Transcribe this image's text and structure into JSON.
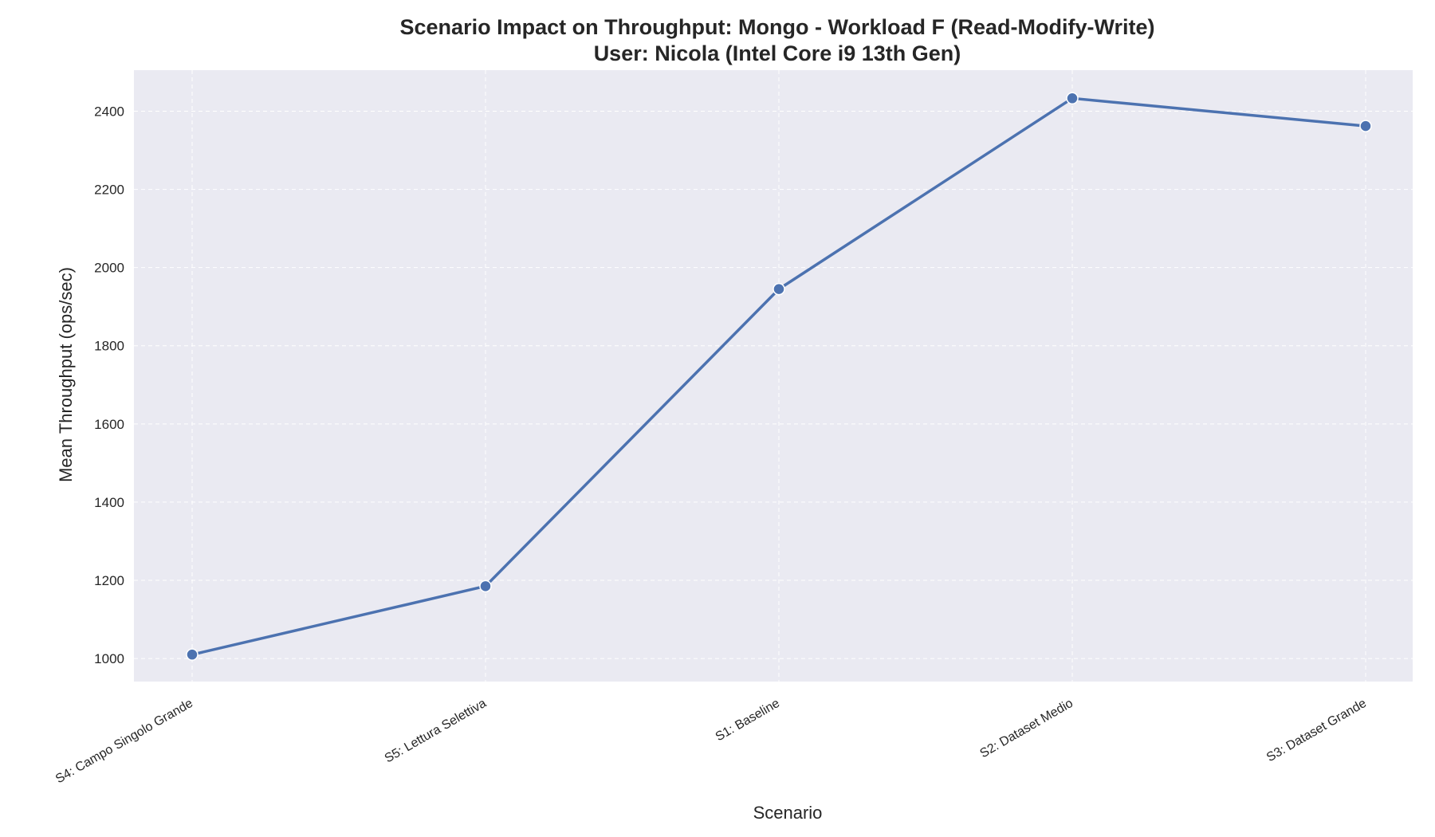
{
  "chart_data": {
    "type": "line",
    "title": "Scenario Impact on Throughput: Mongo - Workload F (Read-Modify-Write)",
    "subtitle": "User: Nicola (Intel Core i9 13th Gen)",
    "xlabel": "Scenario",
    "ylabel": "Mean Throughput (ops/sec)",
    "categories": [
      "S4: Campo Singolo Grande",
      "S5: Lettura Selettiva",
      "S1: Baseline",
      "S2: Dataset Medio",
      "S3: Dataset Grande"
    ],
    "values": [
      1010,
      1185,
      1945,
      2433,
      2362
    ],
    "ylim": [
      941,
      2505
    ],
    "yticks": [
      1000,
      1200,
      1400,
      1600,
      1800,
      2000,
      2200,
      2400
    ],
    "grid": true,
    "colors": {
      "line": "#4c72b0",
      "plot_bg": "#eaeaf2",
      "grid": "#ffffff"
    }
  }
}
